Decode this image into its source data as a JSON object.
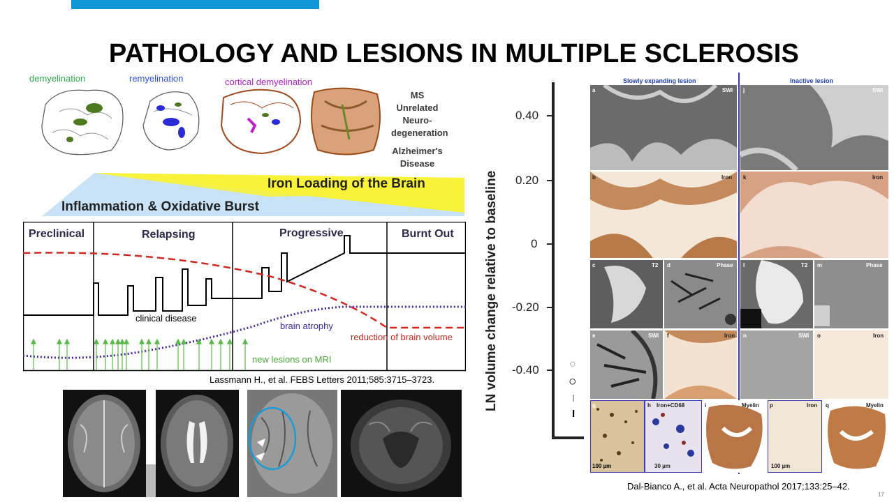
{
  "slide": {
    "title": "PATHOLOGY AND LESIONS IN MULTIPLE SCLEROSIS",
    "page_number": "17",
    "accent_color": "#0e96d6"
  },
  "brain_sections": {
    "demyelination": "demyelination",
    "remyelination": "remyelination",
    "cortical": "cortical demyelination",
    "ms_unrelated": [
      "MS Unrelated",
      "Neuro-",
      "degeneration"
    ],
    "alzheimers": [
      "Alzheimer's",
      "Disease"
    ]
  },
  "triangles": {
    "iron": "Iron Loading of the Brain",
    "inflammation": "Inflammation & Oxidative Burst"
  },
  "phase_chart": {
    "phases": [
      "Preclinical",
      "Relapsing",
      "Progressive",
      "Burnt Out"
    ],
    "clinical_disease": "clinical disease",
    "brain_atrophy": "brain atrophy",
    "reduction": "reduction of brain volume",
    "new_lesions": "new lesions on MRI"
  },
  "citations": {
    "left": "Lassmann H., et al. FEBS Letters 2011;585:3715–3723.",
    "right": "Dal-Bianco A., et al. Acta Neuropathol 2017;133:25–42."
  },
  "lesion_panel": {
    "slow": "Slowly expanding lesion",
    "inactive": "Inactive lesion",
    "labels": {
      "a": "a",
      "b": "b",
      "c": "c",
      "d": "d",
      "e": "e",
      "f": "f",
      "g": "g",
      "h": "h",
      "i": "i",
      "j": "j",
      "k": "k",
      "l": "l",
      "m": "m",
      "n": "n",
      "o": "o",
      "p": "p",
      "q": "q",
      "swi": "SWI",
      "iron": "Iron",
      "t2": "T2",
      "phase": "Phase",
      "iron_cd68": "Iron+CD68",
      "myelin": "Myelin",
      "scale100": "100 µm",
      "scale30": "30 µm"
    }
  },
  "bg_chart": {
    "ylabel": "LN volume change relative to baseline",
    "ticks": [
      "0.40",
      "0.20",
      "0",
      "-0.20",
      "-0.40"
    ],
    "legend_marks": [
      "○",
      "○",
      "I",
      "I"
    ]
  }
}
